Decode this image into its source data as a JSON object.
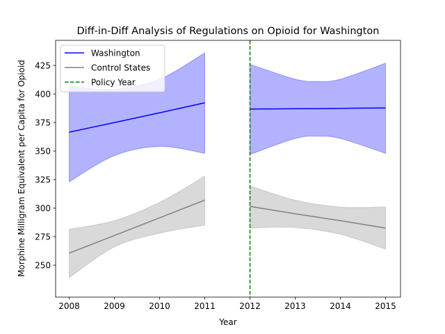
{
  "chart_data": {
    "type": "line",
    "title": "Diff-in-Diff Analysis of Regulations on Opioid for Washington",
    "xlabel": "Year",
    "ylabel": "Morphine Milligram Equivalent per Capita for Opioid",
    "xlim": [
      2007.7,
      2015.33
    ],
    "ylim": [
      222,
      447
    ],
    "xticks": [
      2008,
      2009,
      2010,
      2011,
      2012,
      2013,
      2014,
      2015
    ],
    "yticks": [
      250,
      275,
      300,
      325,
      350,
      375,
      400,
      425
    ],
    "grid": false,
    "legend_position": "top-left",
    "policy_year": 2012,
    "series": [
      {
        "name": "Washington",
        "color": "#0000ff",
        "band_color": "#0000ff",
        "band_opacity": 0.3,
        "segments": [
          {
            "x": [
              2008,
              2009,
              2010,
              2011
            ],
            "y": [
              366.5,
              375,
              383.5,
              392.3
            ],
            "lower": [
              323,
              346,
              354,
              348
            ],
            "upper": [
              407,
              404,
              413,
              436
            ]
          },
          {
            "x": [
              2012,
              2013,
              2013.5,
              2014,
              2015
            ],
            "y": [
              386.8,
              387.1,
              387.2,
              387.4,
              387.8
            ],
            "lower": [
              347,
              361,
              363,
              361,
              348
            ],
            "upper": [
              426,
              413,
              411,
              413,
              427
            ]
          }
        ]
      },
      {
        "name": "Control States",
        "color": "#808080",
        "band_color": "#808080",
        "band_opacity": 0.3,
        "segments": [
          {
            "x": [
              2008,
              2009,
              2010,
              2011
            ],
            "y": [
              260.5,
              276,
              291.5,
              307
            ],
            "lower": [
              239,
              266,
              278,
              285
            ],
            "upper": [
              281.5,
              289,
              305,
              328
            ]
          },
          {
            "x": [
              2012,
              2013,
              2014,
              2015
            ],
            "y": [
              301.5,
              295,
              289,
              282.5
            ],
            "lower": [
              282.5,
              283,
              277,
              264
            ],
            "upper": [
              319.5,
              307,
              301,
              301
            ]
          }
        ]
      }
    ],
    "legend": [
      {
        "label": "Washington",
        "color": "#0000ff",
        "style": "solid"
      },
      {
        "label": "Control States",
        "color": "#808080",
        "style": "solid"
      },
      {
        "label": "Policy Year",
        "color": "#008000",
        "style": "dashed"
      }
    ]
  }
}
